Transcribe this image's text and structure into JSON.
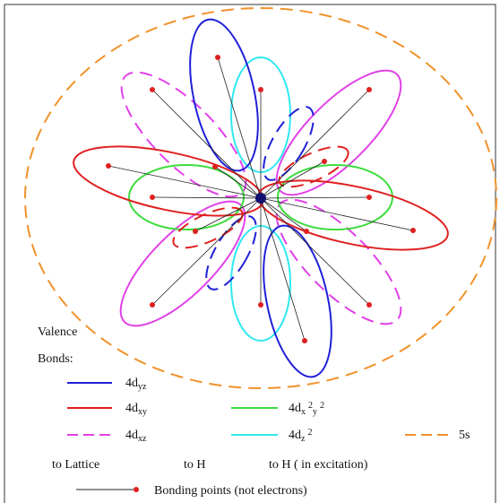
{
  "title_lines": [
    "Valence",
    "Bonds:"
  ],
  "legend": {
    "items": [
      {
        "parts": [
          {
            "t": "4d"
          },
          {
            "sub": "yz"
          }
        ]
      },
      {
        "parts": [
          {
            "t": "4d"
          },
          {
            "sub": "xy"
          }
        ]
      },
      {
        "parts": [
          {
            "t": "4d"
          },
          {
            "sub": "x"
          },
          {
            "sup": "2"
          },
          {
            "sub": "y"
          },
          {
            "sup": "2"
          }
        ]
      },
      {
        "parts": [
          {
            "t": "4d"
          },
          {
            "sub": "xz"
          }
        ]
      },
      {
        "parts": [
          {
            "t": "4d"
          },
          {
            "sub": "z"
          },
          {
            "sup": "2"
          }
        ]
      },
      {
        "parts": [
          {
            "t": "5s"
          }
        ]
      }
    ]
  },
  "captions": [
    "to Lattice",
    "to H",
    "to H ( in excitation)"
  ],
  "bonding_note": "Bonding points (not electrons)"
}
